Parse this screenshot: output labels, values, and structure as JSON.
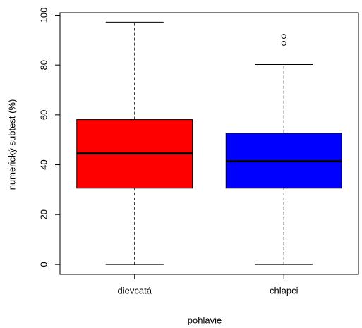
{
  "chart_data": {
    "type": "box",
    "x_label": "pohlavie",
    "y_label": "numerický subtest (%)",
    "categories": [
      "dievcatá",
      "chlapci"
    ],
    "colors": [
      "#ff0000",
      "#0000ff"
    ],
    "boxes": [
      {
        "min": 0,
        "q1": 30.6,
        "median": 44.5,
        "q3": 58.1,
        "max": 97.2,
        "outliers": []
      },
      {
        "min": 0,
        "q1": 30.6,
        "median": 41.4,
        "q3": 52.7,
        "max": 80.2,
        "outliers": [
          88.7,
          91.5
        ]
      }
    ],
    "ylim": [
      -4,
      101
    ],
    "yticks": [
      0,
      20,
      40,
      60,
      80,
      100
    ]
  }
}
